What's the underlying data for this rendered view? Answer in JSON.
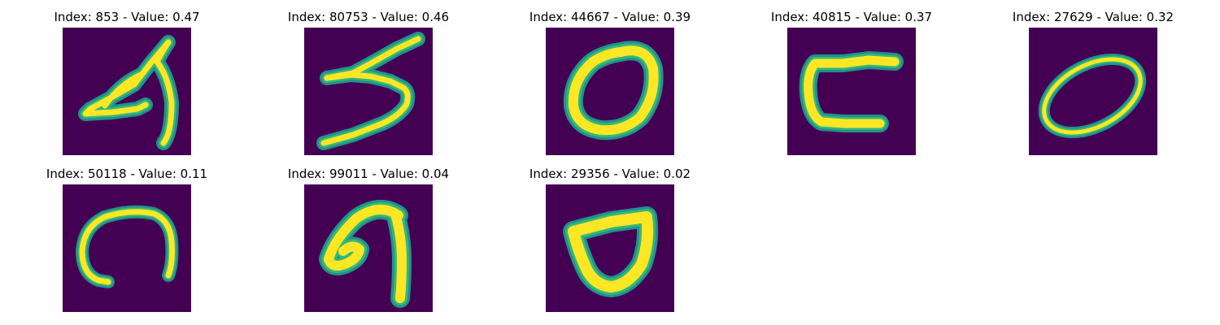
{
  "figure": {
    "colors": {
      "background": "#440154",
      "stroke_core": "#fde725",
      "stroke_edge": "#35b779",
      "stroke_halo": "#21918c"
    },
    "panels": [
      {
        "title": "Index: 853 - Value: 0.47",
        "index": 853,
        "value": 0.47,
        "depicts": "handwritten-digit-4"
      },
      {
        "title": "Index: 80753 - Value: 0.46",
        "index": 80753,
        "value": 0.46,
        "depicts": "handwritten-digit-5"
      },
      {
        "title": "Index: 44667 - Value: 0.39",
        "index": 44667,
        "value": 0.39,
        "depicts": "handwritten-digit-0"
      },
      {
        "title": "Index: 40815 - Value: 0.37",
        "index": 40815,
        "value": 0.37,
        "depicts": "handwritten-digit-c-shape"
      },
      {
        "title": "Index: 27629 - Value: 0.32",
        "index": 27629,
        "value": 0.32,
        "depicts": "handwritten-digit-0"
      },
      {
        "title": "Index: 50118 - Value: 0.11",
        "index": 50118,
        "value": 0.11,
        "depicts": "handwritten-arch-shape"
      },
      {
        "title": "Index: 99011 - Value: 0.04",
        "index": 99011,
        "value": 0.04,
        "depicts": "handwritten-digit-9"
      },
      {
        "title": "Index: 29356 - Value: 0.02",
        "index": 29356,
        "value": 0.02,
        "depicts": "handwritten-digit-0"
      }
    ]
  }
}
